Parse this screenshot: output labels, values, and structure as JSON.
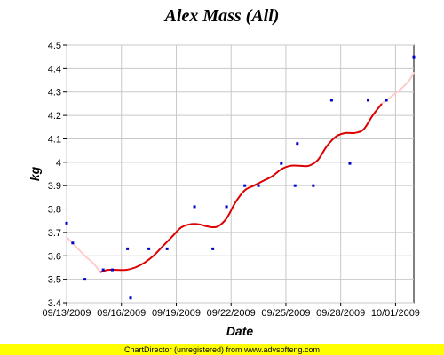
{
  "chart_data": {
    "type": "scatter",
    "title": "Alex Mass (All)",
    "xlabel": "Date",
    "ylabel": "kg",
    "ylim": [
      3.4,
      4.5
    ],
    "xlim": [
      "2009-09-13",
      "2009-10-02"
    ],
    "yticks": [
      3.4,
      3.5,
      3.6,
      3.7,
      3.8,
      3.9,
      4.0,
      4.1,
      4.2,
      4.3,
      4.4,
      4.5
    ],
    "ytick_labels": [
      "3.4",
      "3.5",
      "3.6",
      "3.7",
      "3.8",
      "3.9",
      "4",
      "4.1",
      "4.2",
      "4.3",
      "4.4",
      "4.5"
    ],
    "xticks": [
      "2009-09-13",
      "2009-09-16",
      "2009-09-19",
      "2009-09-22",
      "2009-09-25",
      "2009-09-28",
      "2009-10-01"
    ],
    "xtick_labels": [
      "09/13/2009",
      "09/16/2009",
      "09/19/2009",
      "09/22/2009",
      "09/25/2009",
      "09/28/2009",
      "10/01/2009"
    ],
    "grid": true,
    "series": [
      {
        "kind": "points",
        "color": "#0000cc",
        "points": [
          {
            "x": "2009-09-13 00:00",
            "y": 3.74
          },
          {
            "x": "2009-09-13 08:00",
            "y": 3.655
          },
          {
            "x": "2009-09-14 00:00",
            "y": 3.5
          },
          {
            "x": "2009-09-15 00:00",
            "y": 3.54
          },
          {
            "x": "2009-09-15 12:00",
            "y": 3.54
          },
          {
            "x": "2009-09-16 08:00",
            "y": 3.63
          },
          {
            "x": "2009-09-16 12:00",
            "y": 3.42
          },
          {
            "x": "2009-09-17 12:00",
            "y": 3.63
          },
          {
            "x": "2009-09-18 12:00",
            "y": 3.63
          },
          {
            "x": "2009-09-20 00:00",
            "y": 3.81
          },
          {
            "x": "2009-09-21 00:00",
            "y": 3.63
          },
          {
            "x": "2009-09-21 18:00",
            "y": 3.81
          },
          {
            "x": "2009-09-22 18:00",
            "y": 3.9
          },
          {
            "x": "2009-09-23 12:00",
            "y": 3.9
          },
          {
            "x": "2009-09-24 18:00",
            "y": 3.995
          },
          {
            "x": "2009-09-25 12:00",
            "y": 3.9
          },
          {
            "x": "2009-09-25 15:00",
            "y": 4.08
          },
          {
            "x": "2009-09-26 12:00",
            "y": 3.9
          },
          {
            "x": "2009-09-27 12:00",
            "y": 4.265
          },
          {
            "x": "2009-09-28 12:00",
            "y": 3.995
          },
          {
            "x": "2009-09-29 12:00",
            "y": 4.265
          },
          {
            "x": "2009-09-30 12:00",
            "y": 4.265
          },
          {
            "x": "2009-10-02 00:00",
            "y": 4.45
          }
        ]
      },
      {
        "kind": "trend",
        "color": "#dd0000",
        "edge_color": "#ffcccc",
        "points": [
          {
            "x": "2009-09-13 00:00",
            "y": 3.68
          },
          {
            "x": "2009-09-13 12:00",
            "y": 3.64
          },
          {
            "x": "2009-09-14 00:00",
            "y": 3.6
          },
          {
            "x": "2009-09-14 12:00",
            "y": 3.565
          },
          {
            "x": "2009-09-14 20:00",
            "y": 3.53
          },
          {
            "x": "2009-09-15 06:00",
            "y": 3.54
          },
          {
            "x": "2009-09-15 18:00",
            "y": 3.54
          },
          {
            "x": "2009-09-16 06:00",
            "y": 3.54
          },
          {
            "x": "2009-09-16 18:00",
            "y": 3.55
          },
          {
            "x": "2009-09-17 06:00",
            "y": 3.57
          },
          {
            "x": "2009-09-17 18:00",
            "y": 3.6
          },
          {
            "x": "2009-09-18 06:00",
            "y": 3.64
          },
          {
            "x": "2009-09-18 18:00",
            "y": 3.68
          },
          {
            "x": "2009-09-19 06:00",
            "y": 3.72
          },
          {
            "x": "2009-09-19 18:00",
            "y": 3.735
          },
          {
            "x": "2009-09-20 06:00",
            "y": 3.735
          },
          {
            "x": "2009-09-20 18:00",
            "y": 3.725
          },
          {
            "x": "2009-09-21 06:00",
            "y": 3.725
          },
          {
            "x": "2009-09-21 18:00",
            "y": 3.76
          },
          {
            "x": "2009-09-22 06:00",
            "y": 3.83
          },
          {
            "x": "2009-09-22 18:00",
            "y": 3.88
          },
          {
            "x": "2009-09-23 06:00",
            "y": 3.9
          },
          {
            "x": "2009-09-23 18:00",
            "y": 3.92
          },
          {
            "x": "2009-09-24 06:00",
            "y": 3.94
          },
          {
            "x": "2009-09-24 18:00",
            "y": 3.97
          },
          {
            "x": "2009-09-25 06:00",
            "y": 3.985
          },
          {
            "x": "2009-09-25 18:00",
            "y": 3.985
          },
          {
            "x": "2009-09-26 06:00",
            "y": 3.985
          },
          {
            "x": "2009-09-26 18:00",
            "y": 4.01
          },
          {
            "x": "2009-09-27 06:00",
            "y": 4.07
          },
          {
            "x": "2009-09-27 18:00",
            "y": 4.11
          },
          {
            "x": "2009-09-28 06:00",
            "y": 4.125
          },
          {
            "x": "2009-09-28 18:00",
            "y": 4.125
          },
          {
            "x": "2009-09-29 06:00",
            "y": 4.14
          },
          {
            "x": "2009-09-29 18:00",
            "y": 4.2
          },
          {
            "x": "2009-09-30 06:00",
            "y": 4.25
          },
          {
            "x": "2009-09-30 18:00",
            "y": 4.28
          },
          {
            "x": "2009-10-01 06:00",
            "y": 4.31
          },
          {
            "x": "2009-10-01 18:00",
            "y": 4.35
          },
          {
            "x": "2009-10-02 00:00",
            "y": 4.385
          }
        ]
      }
    ]
  },
  "footer": {
    "text": "ChartDirector (unregistered) from www.advsofteng.com",
    "background": "#ffff00"
  }
}
